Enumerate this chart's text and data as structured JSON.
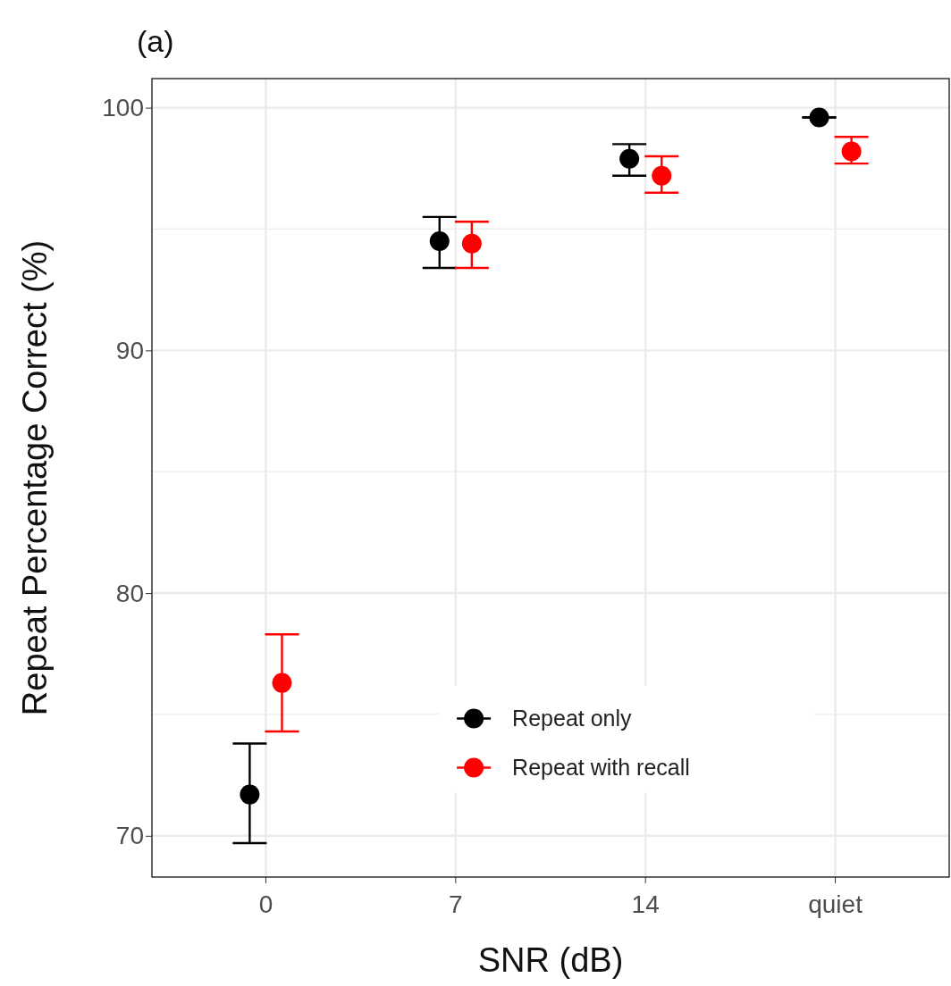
{
  "chart_data": {
    "type": "scatter",
    "title": "(a)",
    "xlabel": "SNR (dB)",
    "ylabel": "Repeat Percentage Correct (%)",
    "categories": [
      "0",
      "7",
      "14",
      "quiet"
    ],
    "series": [
      {
        "name": "Repeat only",
        "color": "#000000",
        "values": [
          71.7,
          94.5,
          97.9,
          99.6
        ],
        "errors": [
          [
            69.7,
            73.8
          ],
          [
            93.4,
            95.5
          ],
          [
            97.2,
            98.5
          ],
          [
            99.6,
            99.6
          ]
        ]
      },
      {
        "name": "Repeat with recall",
        "color": "#ff0000",
        "values": [
          76.3,
          94.4,
          97.2,
          98.2
        ],
        "errors": [
          [
            74.3,
            78.3
          ],
          [
            93.4,
            95.3
          ],
          [
            96.5,
            98.0
          ],
          [
            97.7,
            98.8
          ]
        ]
      }
    ],
    "ylim": [
      68.3,
      101.2
    ],
    "yticks": [
      70,
      {
        "value": 75,
        "label": null
      },
      80,
      {
        "value": 85,
        "label": null
      },
      90,
      {
        "value": 95,
        "label": null
      },
      100
    ],
    "grid": true,
    "legend": "bottom right",
    "marker": "circle"
  }
}
